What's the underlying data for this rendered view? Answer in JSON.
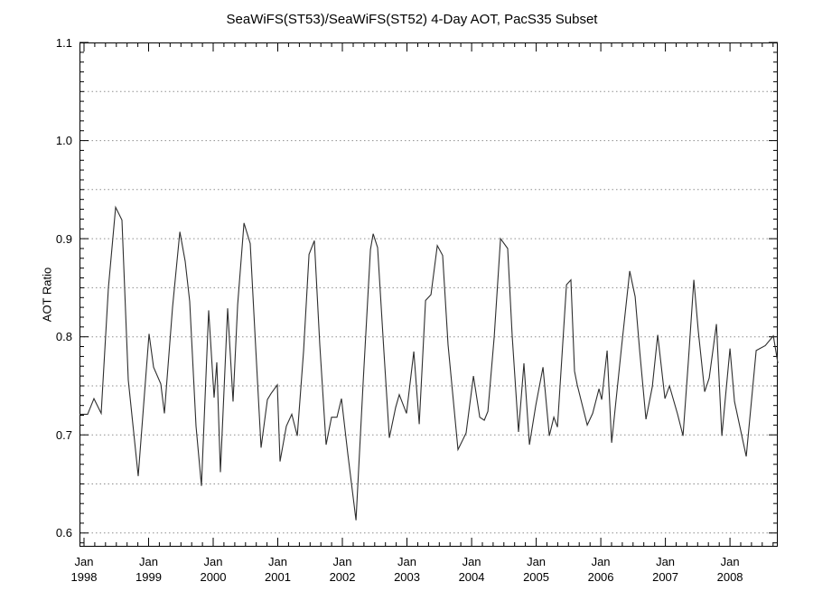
{
  "title": "SeaWiFS(ST53)/SeaWiFS(ST52) 4-Day AOT, PacS35 Subset",
  "chart_data": {
    "type": "line",
    "title": "SeaWiFS(ST53)/SeaWiFS(ST52) 4-Day AOT, PacS35 Subset",
    "xlabel": "",
    "ylabel": "AOT Ratio",
    "legend": null,
    "grid": "horizontal-dotted",
    "xlim": [
      1997.93,
      2008.74
    ],
    "ylim": [
      0.586,
      1.1
    ],
    "y_ticks": [
      0.6,
      0.7,
      0.8,
      0.9,
      1.0,
      1.1
    ],
    "y_minor_interval": 0.01,
    "y_gridlines": [
      0.6,
      0.65,
      0.7,
      0.75,
      0.8,
      0.85,
      0.9,
      0.95,
      1.0,
      1.05
    ],
    "x_ticks": [
      {
        "month": "Jan",
        "year": "1998",
        "t": 1998
      },
      {
        "month": "Jan",
        "year": "1999",
        "t": 1999
      },
      {
        "month": "Jan",
        "year": "2000",
        "t": 2000
      },
      {
        "month": "Jan",
        "year": "2001",
        "t": 2001
      },
      {
        "month": "Jan",
        "year": "2002",
        "t": 2002
      },
      {
        "month": "Jan",
        "year": "2003",
        "t": 2003
      },
      {
        "month": "Jan",
        "year": "2004",
        "t": 2004
      },
      {
        "month": "Jan",
        "year": "2005",
        "t": 2005
      },
      {
        "month": "Jan",
        "year": "2006",
        "t": 2006
      },
      {
        "month": "Jan",
        "year": "2007",
        "t": 2007
      },
      {
        "month": "Jan",
        "year": "2008",
        "t": 2008
      }
    ],
    "x_minor_interval_years": 0.1666667,
    "colors": {
      "axis": "#000000",
      "grid": "#8f8f8f",
      "line": "#2e2e2e",
      "background": "#ffffff"
    },
    "series": [
      {
        "name": "AOT ratio SeaWiFS(ST53)/SeaWiFS(ST52)",
        "points": [
          [
            1997.93,
            0.721
          ],
          [
            1998.056,
            0.721
          ],
          [
            1998.154,
            0.737
          ],
          [
            1998.266,
            0.722
          ],
          [
            1998.378,
            0.85
          ],
          [
            1998.49,
            0.932
          ],
          [
            1998.587,
            0.919
          ],
          [
            1998.685,
            0.756
          ],
          [
            1998.839,
            0.658
          ],
          [
            1999.007,
            0.803
          ],
          [
            1999.077,
            0.769
          ],
          [
            1999.189,
            0.752
          ],
          [
            1999.245,
            0.722
          ],
          [
            1999.371,
            0.83
          ],
          [
            1999.483,
            0.907
          ],
          [
            1999.566,
            0.877
          ],
          [
            1999.636,
            0.836
          ],
          [
            1999.734,
            0.709
          ],
          [
            1999.818,
            0.648
          ],
          [
            1999.93,
            0.827
          ],
          [
            2000.014,
            0.738
          ],
          [
            2000.056,
            0.774
          ],
          [
            2000.112,
            0.662
          ],
          [
            2000.224,
            0.829
          ],
          [
            2000.308,
            0.734
          ],
          [
            2000.378,
            0.833
          ],
          [
            2000.476,
            0.916
          ],
          [
            2000.573,
            0.895
          ],
          [
            2000.657,
            0.79
          ],
          [
            2000.741,
            0.687
          ],
          [
            2000.839,
            0.736
          ],
          [
            2000.895,
            0.742
          ],
          [
            2000.993,
            0.751
          ],
          [
            2001.035,
            0.673
          ],
          [
            2001.133,
            0.709
          ],
          [
            2001.217,
            0.721
          ],
          [
            2001.301,
            0.699
          ],
          [
            2001.399,
            0.786
          ],
          [
            2001.483,
            0.884
          ],
          [
            2001.566,
            0.898
          ],
          [
            2001.65,
            0.792
          ],
          [
            2001.748,
            0.69
          ],
          [
            2001.832,
            0.718
          ],
          [
            2001.916,
            0.718
          ],
          [
            2001.986,
            0.737
          ],
          [
            2002.084,
            0.681
          ],
          [
            2002.21,
            0.613
          ],
          [
            2002.322,
            0.755
          ],
          [
            2002.434,
            0.889
          ],
          [
            2002.476,
            0.905
          ],
          [
            2002.545,
            0.891
          ],
          [
            2002.643,
            0.785
          ],
          [
            2002.727,
            0.697
          ],
          [
            2002.825,
            0.728
          ],
          [
            2002.881,
            0.741
          ],
          [
            2002.993,
            0.722
          ],
          [
            2003.105,
            0.785
          ],
          [
            2003.189,
            0.711
          ],
          [
            2003.287,
            0.837
          ],
          [
            2003.371,
            0.843
          ],
          [
            2003.469,
            0.893
          ],
          [
            2003.552,
            0.883
          ],
          [
            2003.636,
            0.792
          ],
          [
            2003.79,
            0.685
          ],
          [
            2003.916,
            0.702
          ],
          [
            2004.028,
            0.76
          ],
          [
            2004.126,
            0.718
          ],
          [
            2004.196,
            0.715
          ],
          [
            2004.252,
            0.724
          ],
          [
            2004.35,
            0.8
          ],
          [
            2004.448,
            0.9
          ],
          [
            2004.559,
            0.89
          ],
          [
            2004.629,
            0.801
          ],
          [
            2004.727,
            0.703
          ],
          [
            2004.811,
            0.773
          ],
          [
            2004.895,
            0.69
          ],
          [
            2004.993,
            0.73
          ],
          [
            2005.105,
            0.769
          ],
          [
            2005.203,
            0.699
          ],
          [
            2005.273,
            0.718
          ],
          [
            2005.329,
            0.708
          ],
          [
            2005.469,
            0.853
          ],
          [
            2005.538,
            0.858
          ],
          [
            2005.594,
            0.765
          ],
          [
            2005.636,
            0.751
          ],
          [
            2005.79,
            0.71
          ],
          [
            2005.874,
            0.722
          ],
          [
            2005.972,
            0.747
          ],
          [
            2006.014,
            0.736
          ],
          [
            2006.098,
            0.786
          ],
          [
            2006.168,
            0.692
          ],
          [
            2006.322,
            0.79
          ],
          [
            2006.448,
            0.867
          ],
          [
            2006.532,
            0.841
          ],
          [
            2006.601,
            0.787
          ],
          [
            2006.699,
            0.716
          ],
          [
            2006.797,
            0.749
          ],
          [
            2006.881,
            0.802
          ],
          [
            2006.993,
            0.737
          ],
          [
            2007.063,
            0.75
          ],
          [
            2007.189,
            0.721
          ],
          [
            2007.273,
            0.699
          ],
          [
            2007.357,
            0.776
          ],
          [
            2007.441,
            0.858
          ],
          [
            2007.51,
            0.806
          ],
          [
            2007.608,
            0.744
          ],
          [
            2007.678,
            0.758
          ],
          [
            2007.79,
            0.813
          ],
          [
            2007.874,
            0.699
          ],
          [
            2008.0,
            0.788
          ],
          [
            2008.07,
            0.734
          ],
          [
            2008.252,
            0.678
          ],
          [
            2008.406,
            0.786
          ],
          [
            2008.545,
            0.791
          ],
          [
            2008.671,
            0.801
          ],
          [
            2008.741,
            0.773
          ]
        ]
      }
    ]
  }
}
